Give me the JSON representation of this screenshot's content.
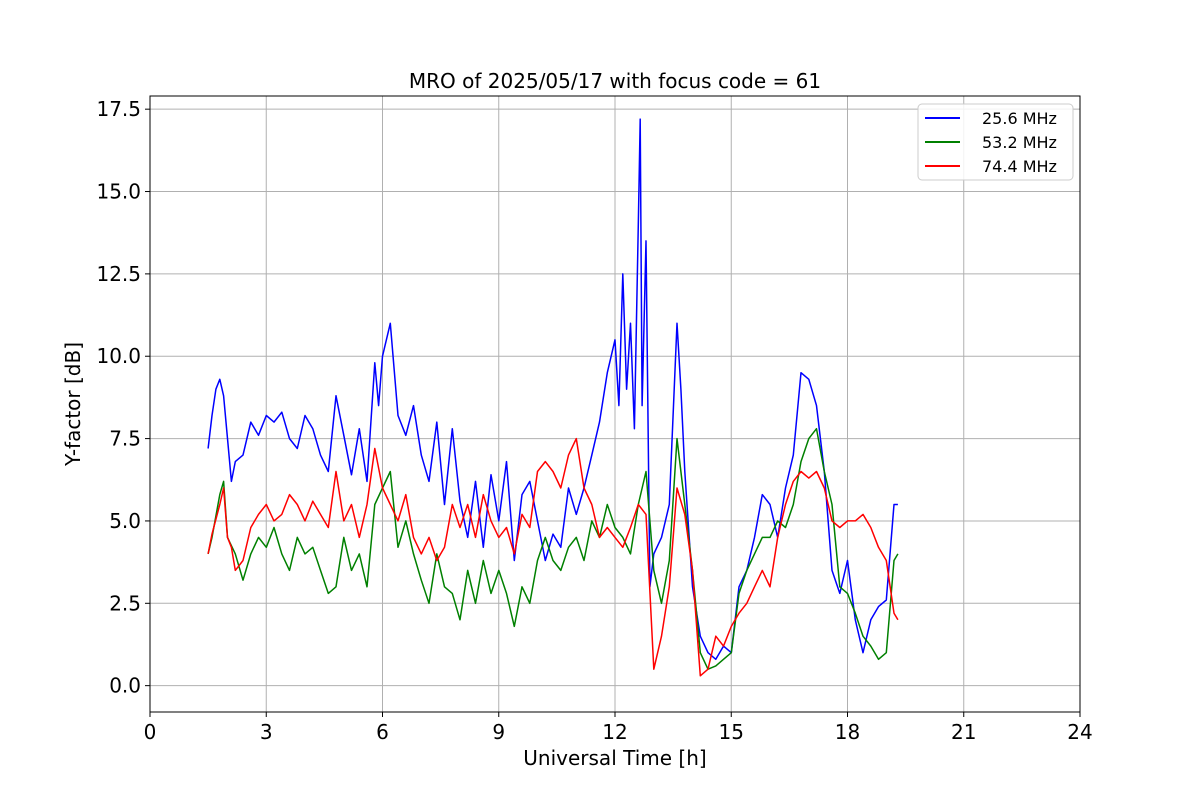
{
  "chart_data": {
    "type": "line",
    "title": "MRO of 2025/05/17 with focus code = 61",
    "xlabel": "Universal Time [h]",
    "ylabel": "Y-factor [dB]",
    "xlim": [
      0,
      24
    ],
    "ylim": [
      -0.8,
      17.9
    ],
    "xticks": [
      0,
      3,
      6,
      9,
      12,
      15,
      18,
      21,
      24
    ],
    "xtick_labels": [
      "0",
      "3",
      "6",
      "9",
      "12",
      "15",
      "18",
      "21",
      "24"
    ],
    "yticks": [
      0.0,
      2.5,
      5.0,
      7.5,
      10.0,
      12.5,
      15.0,
      17.5
    ],
    "ytick_labels": [
      "0.0",
      "2.5",
      "5.0",
      "7.5",
      "10.0",
      "12.5",
      "15.0",
      "17.5"
    ],
    "grid": true,
    "legend_position": "top-right",
    "series": [
      {
        "name": "25.6 MHz",
        "color": "#0000ff",
        "x": [
          1.5,
          1.6,
          1.7,
          1.8,
          1.9,
          2.0,
          2.1,
          2.2,
          2.4,
          2.6,
          2.8,
          3.0,
          3.2,
          3.4,
          3.6,
          3.8,
          4.0,
          4.2,
          4.4,
          4.6,
          4.8,
          5.0,
          5.2,
          5.4,
          5.6,
          5.8,
          5.9,
          6.0,
          6.2,
          6.4,
          6.6,
          6.8,
          7.0,
          7.2,
          7.4,
          7.6,
          7.8,
          8.0,
          8.2,
          8.4,
          8.6,
          8.8,
          9.0,
          9.2,
          9.4,
          9.6,
          9.8,
          10.0,
          10.2,
          10.4,
          10.6,
          10.8,
          11.0,
          11.2,
          11.4,
          11.6,
          11.8,
          12.0,
          12.1,
          12.2,
          12.3,
          12.4,
          12.5,
          12.6,
          12.65,
          12.7,
          12.8,
          12.9,
          13.0,
          13.2,
          13.4,
          13.6,
          13.7,
          13.8,
          14.0,
          14.2,
          14.4,
          14.6,
          14.8,
          15.0,
          15.2,
          15.4,
          15.6,
          15.8,
          16.0,
          16.2,
          16.4,
          16.6,
          16.8,
          17.0,
          17.2,
          17.4,
          17.6,
          17.8,
          18.0,
          18.2,
          18.4,
          18.6,
          18.8,
          19.0,
          19.2,
          19.3
        ],
        "values": [
          7.2,
          8.2,
          9.0,
          9.3,
          8.8,
          7.5,
          6.2,
          6.8,
          7.0,
          8.0,
          7.6,
          8.2,
          8.0,
          8.3,
          7.5,
          7.2,
          8.2,
          7.8,
          7.0,
          6.5,
          8.8,
          7.6,
          6.4,
          7.8,
          6.2,
          9.8,
          8.5,
          10.0,
          11.0,
          8.2,
          7.6,
          8.5,
          7.0,
          6.2,
          8.0,
          5.5,
          7.8,
          5.6,
          4.5,
          6.2,
          4.2,
          6.4,
          5.0,
          6.8,
          3.8,
          5.8,
          6.2,
          5.0,
          3.8,
          4.6,
          4.2,
          6.0,
          5.2,
          6.0,
          7.0,
          8.0,
          9.5,
          10.5,
          8.5,
          12.5,
          9.0,
          11.0,
          7.8,
          14.0,
          17.2,
          8.5,
          13.5,
          3.0,
          4.0,
          4.5,
          5.5,
          11.0,
          9.0,
          6.5,
          3.0,
          1.5,
          1.0,
          0.8,
          1.2,
          1.0,
          3.0,
          3.5,
          4.5,
          5.8,
          5.5,
          4.5,
          6.0,
          7.0,
          9.5,
          9.3,
          8.5,
          6.5,
          3.5,
          2.8,
          3.8,
          2.0,
          1.0,
          2.0,
          2.4,
          2.6,
          5.5,
          5.5
        ]
      },
      {
        "name": "53.2 MHz",
        "color": "#008000",
        "x": [
          1.5,
          1.6,
          1.8,
          1.9,
          2.0,
          2.2,
          2.4,
          2.6,
          2.8,
          3.0,
          3.2,
          3.4,
          3.6,
          3.8,
          4.0,
          4.2,
          4.4,
          4.6,
          4.8,
          5.0,
          5.2,
          5.4,
          5.6,
          5.8,
          6.0,
          6.2,
          6.4,
          6.6,
          6.8,
          7.0,
          7.2,
          7.4,
          7.6,
          7.8,
          8.0,
          8.2,
          8.4,
          8.6,
          8.8,
          9.0,
          9.2,
          9.4,
          9.6,
          9.8,
          10.0,
          10.2,
          10.4,
          10.6,
          10.8,
          11.0,
          11.2,
          11.4,
          11.6,
          11.8,
          12.0,
          12.2,
          12.4,
          12.6,
          12.8,
          13.0,
          13.2,
          13.4,
          13.6,
          13.8,
          14.0,
          14.2,
          14.4,
          14.6,
          14.8,
          15.0,
          15.2,
          15.4,
          15.6,
          15.8,
          16.0,
          16.2,
          16.4,
          16.6,
          16.8,
          17.0,
          17.2,
          17.4,
          17.6,
          17.8,
          18.0,
          18.2,
          18.4,
          18.6,
          18.8,
          19.0,
          19.2,
          19.3
        ],
        "values": [
          4.0,
          4.5,
          5.8,
          6.2,
          4.5,
          4.0,
          3.2,
          4.0,
          4.5,
          4.2,
          4.8,
          4.0,
          3.5,
          4.5,
          4.0,
          4.2,
          3.5,
          2.8,
          3.0,
          4.5,
          3.5,
          4.0,
          3.0,
          5.5,
          6.0,
          6.5,
          4.2,
          5.0,
          4.0,
          3.2,
          2.5,
          4.0,
          3.0,
          2.8,
          2.0,
          3.5,
          2.5,
          3.8,
          2.8,
          3.5,
          2.8,
          1.8,
          3.0,
          2.5,
          3.8,
          4.5,
          3.8,
          3.5,
          4.2,
          4.5,
          3.8,
          5.0,
          4.5,
          5.5,
          4.8,
          4.5,
          4.0,
          5.5,
          6.5,
          3.5,
          2.5,
          3.8,
          7.5,
          5.5,
          3.5,
          1.0,
          0.5,
          0.6,
          0.8,
          1.0,
          2.8,
          3.5,
          4.0,
          4.5,
          4.5,
          5.0,
          4.8,
          5.5,
          6.8,
          7.5,
          7.8,
          6.5,
          5.5,
          3.0,
          2.8,
          2.2,
          1.5,
          1.2,
          0.8,
          1.0,
          3.8,
          4.0
        ]
      },
      {
        "name": "74.4 MHz",
        "color": "#ff0000",
        "x": [
          1.5,
          1.6,
          1.8,
          1.9,
          2.0,
          2.1,
          2.2,
          2.4,
          2.6,
          2.8,
          3.0,
          3.2,
          3.4,
          3.6,
          3.8,
          4.0,
          4.2,
          4.4,
          4.6,
          4.8,
          5.0,
          5.2,
          5.4,
          5.6,
          5.8,
          6.0,
          6.2,
          6.4,
          6.6,
          6.8,
          7.0,
          7.2,
          7.4,
          7.6,
          7.8,
          8.0,
          8.2,
          8.4,
          8.6,
          8.8,
          9.0,
          9.2,
          9.4,
          9.6,
          9.8,
          10.0,
          10.2,
          10.4,
          10.6,
          10.8,
          11.0,
          11.2,
          11.4,
          11.6,
          11.8,
          12.0,
          12.2,
          12.4,
          12.6,
          12.8,
          13.0,
          13.2,
          13.4,
          13.6,
          13.8,
          14.0,
          14.2,
          14.4,
          14.6,
          14.8,
          15.0,
          15.2,
          15.4,
          15.6,
          15.8,
          16.0,
          16.2,
          16.4,
          16.6,
          16.8,
          17.0,
          17.2,
          17.4,
          17.6,
          17.8,
          18.0,
          18.2,
          18.4,
          18.6,
          18.8,
          19.0,
          19.2,
          19.3
        ],
        "values": [
          4.0,
          4.6,
          5.5,
          6.0,
          4.5,
          4.2,
          3.5,
          3.8,
          4.8,
          5.2,
          5.5,
          5.0,
          5.2,
          5.8,
          5.5,
          5.0,
          5.6,
          5.2,
          4.8,
          6.5,
          5.0,
          5.5,
          4.5,
          5.5,
          7.2,
          6.0,
          5.5,
          5.0,
          5.8,
          4.5,
          4.0,
          4.5,
          3.8,
          4.2,
          5.5,
          4.8,
          5.5,
          4.5,
          5.8,
          5.0,
          4.5,
          4.8,
          4.0,
          5.2,
          4.8,
          6.5,
          6.8,
          6.5,
          6.0,
          7.0,
          7.5,
          6.0,
          5.5,
          4.5,
          4.8,
          4.5,
          4.2,
          4.8,
          5.5,
          5.2,
          0.5,
          1.5,
          3.0,
          6.0,
          5.2,
          3.5,
          0.3,
          0.5,
          1.5,
          1.2,
          1.8,
          2.2,
          2.5,
          3.0,
          3.5,
          3.0,
          4.5,
          5.5,
          6.2,
          6.5,
          6.3,
          6.5,
          6.0,
          5.0,
          4.8,
          5.0,
          5.0,
          5.2,
          4.8,
          4.2,
          3.8,
          2.2,
          2.0
        ]
      }
    ]
  }
}
